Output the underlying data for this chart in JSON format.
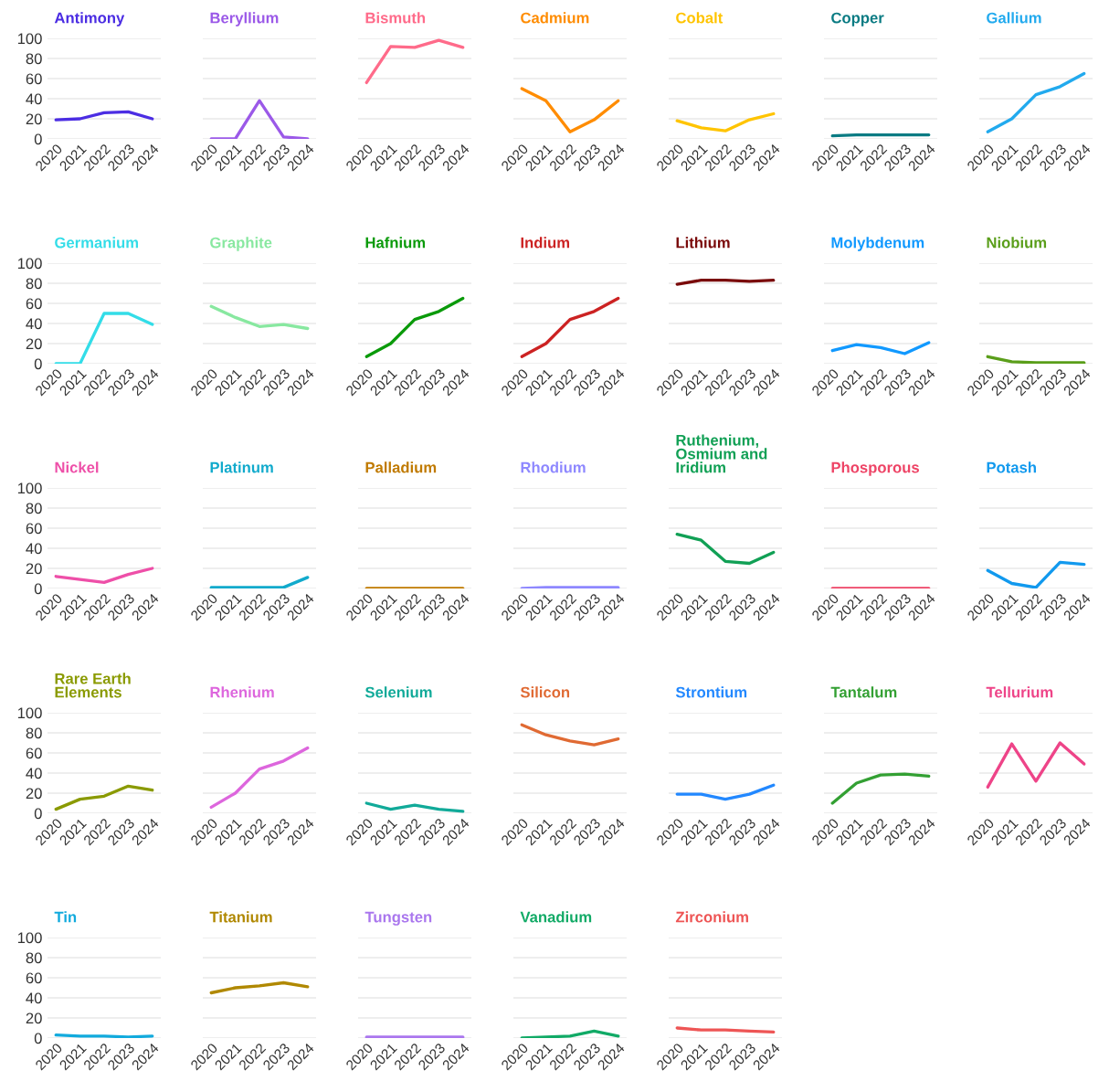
{
  "chart_data": [
    {
      "type": "line",
      "title": "Antimony",
      "categories": [
        "2020",
        "2021",
        "2022",
        "2023",
        "2024"
      ],
      "series": [
        {
          "color": "#4b2de3",
          "values": [
            19,
            20,
            26,
            27,
            20
          ]
        }
      ],
      "ylim": [
        0,
        100
      ],
      "yticks": [
        0,
        20,
        40,
        60,
        80,
        100
      ],
      "grid": "y"
    },
    {
      "type": "line",
      "title": "Beryllium",
      "categories": [
        "2020",
        "2021",
        "2022",
        "2023",
        "2024"
      ],
      "series": [
        {
          "color": "#9b59e8",
          "values": [
            0,
            0,
            38,
            2,
            0
          ]
        }
      ],
      "ylim": [
        0,
        100
      ],
      "yticks": [
        0,
        20,
        40,
        60,
        80,
        100
      ],
      "grid": "y",
      "tick_labels": "x"
    },
    {
      "type": "line",
      "title": "Bismuth",
      "categories": [
        "2020",
        "2021",
        "2022",
        "2023",
        "2024"
      ],
      "series": [
        {
          "color": "#ff6b8a",
          "values": [
            56,
            92,
            91,
            98,
            91
          ]
        }
      ],
      "ylim": [
        0,
        100
      ],
      "yticks": [
        0,
        20,
        40,
        60,
        80,
        100
      ],
      "grid": "y",
      "tick_labels": "x"
    },
    {
      "type": "line",
      "title": "Cadmium",
      "categories": [
        "2020",
        "2021",
        "2022",
        "2023",
        "2024"
      ],
      "series": [
        {
          "color": "#ff8c00",
          "values": [
            50,
            38,
            7,
            19,
            38
          ]
        }
      ],
      "ylim": [
        0,
        100
      ],
      "yticks": [
        0,
        20,
        40,
        60,
        80,
        100
      ],
      "grid": "y",
      "tick_labels": "x"
    },
    {
      "type": "line",
      "title": "Cobalt",
      "categories": [
        "2020",
        "2021",
        "2022",
        "2023",
        "2024"
      ],
      "series": [
        {
          "color": "#ffc400",
          "values": [
            18,
            11,
            8,
            19,
            25
          ]
        }
      ],
      "ylim": [
        0,
        100
      ],
      "yticks": [
        0,
        20,
        40,
        60,
        80,
        100
      ],
      "grid": "y",
      "tick_labels": "x"
    },
    {
      "type": "line",
      "title": "Copper",
      "categories": [
        "2020",
        "2021",
        "2022",
        "2023",
        "2024"
      ],
      "series": [
        {
          "color": "#0a7b83",
          "values": [
            3,
            4,
            4,
            4,
            4
          ]
        }
      ],
      "ylim": [
        0,
        100
      ],
      "yticks": [
        0,
        20,
        40,
        60,
        80,
        100
      ],
      "grid": "y",
      "tick_labels": "x"
    },
    {
      "type": "line",
      "title": "Gallium",
      "categories": [
        "2020",
        "2021",
        "2022",
        "2023",
        "2024"
      ],
      "series": [
        {
          "color": "#22aaee",
          "values": [
            7,
            20,
            44,
            52,
            65
          ]
        }
      ],
      "ylim": [
        0,
        100
      ],
      "yticks": [
        0,
        20,
        40,
        60,
        80,
        100
      ],
      "grid": "y",
      "tick_labels": "x"
    },
    {
      "type": "line",
      "title": "Germanium",
      "categories": [
        "2020",
        "2021",
        "2022",
        "2023",
        "2024"
      ],
      "series": [
        {
          "color": "#33dde8",
          "values": [
            0,
            0,
            50,
            50,
            39
          ]
        }
      ],
      "ylim": [
        0,
        100
      ],
      "yticks": [
        0,
        20,
        40,
        60,
        80,
        100
      ],
      "grid": "y"
    },
    {
      "type": "line",
      "title": "Graphite",
      "categories": [
        "2020",
        "2021",
        "2022",
        "2023",
        "2024"
      ],
      "series": [
        {
          "color": "#88e8a0",
          "values": [
            57,
            46,
            37,
            39,
            35
          ]
        }
      ],
      "ylim": [
        0,
        100
      ],
      "yticks": [
        0,
        20,
        40,
        60,
        80,
        100
      ],
      "grid": "y",
      "tick_labels": "x"
    },
    {
      "type": "line",
      "title": "Hafnium",
      "categories": [
        "2020",
        "2021",
        "2022",
        "2023",
        "2024"
      ],
      "series": [
        {
          "color": "#0a9a0a",
          "values": [
            7,
            20,
            44,
            52,
            65
          ]
        }
      ],
      "ylim": [
        0,
        100
      ],
      "yticks": [
        0,
        20,
        40,
        60,
        80,
        100
      ],
      "grid": "y",
      "tick_labels": "x"
    },
    {
      "type": "line",
      "title": "Indium",
      "categories": [
        "2020",
        "2021",
        "2022",
        "2023",
        "2024"
      ],
      "series": [
        {
          "color": "#cc2222",
          "values": [
            7,
            20,
            44,
            52,
            65
          ]
        }
      ],
      "ylim": [
        0,
        100
      ],
      "yticks": [
        0,
        20,
        40,
        60,
        80,
        100
      ],
      "grid": "y",
      "tick_labels": "x"
    },
    {
      "type": "line",
      "title": "Lithium",
      "categories": [
        "2020",
        "2021",
        "2022",
        "2023",
        "2024"
      ],
      "series": [
        {
          "color": "#7a0a0a",
          "values": [
            79,
            83,
            83,
            82,
            83
          ]
        }
      ],
      "ylim": [
        0,
        100
      ],
      "yticks": [
        0,
        20,
        40,
        60,
        80,
        100
      ],
      "grid": "y",
      "tick_labels": "x"
    },
    {
      "type": "line",
      "title": "Molybdenum",
      "categories": [
        "2020",
        "2021",
        "2022",
        "2023",
        "2024"
      ],
      "series": [
        {
          "color": "#1199ff",
          "values": [
            13,
            19,
            16,
            10,
            21
          ]
        }
      ],
      "ylim": [
        0,
        100
      ],
      "yticks": [
        0,
        20,
        40,
        60,
        80,
        100
      ],
      "grid": "y",
      "tick_labels": "x"
    },
    {
      "type": "line",
      "title": "Niobium",
      "categories": [
        "2020",
        "2021",
        "2022",
        "2023",
        "2024"
      ],
      "series": [
        {
          "color": "#5a9e1a",
          "values": [
            7,
            2,
            1,
            1,
            1
          ]
        }
      ],
      "ylim": [
        0,
        100
      ],
      "yticks": [
        0,
        20,
        40,
        60,
        80,
        100
      ],
      "grid": "y",
      "tick_labels": "x"
    },
    {
      "type": "line",
      "title": "Nickel",
      "categories": [
        "2020",
        "2021",
        "2022",
        "2023",
        "2024"
      ],
      "series": [
        {
          "color": "#ee4fa8",
          "values": [
            12,
            9,
            6,
            14,
            20
          ]
        }
      ],
      "ylim": [
        0,
        100
      ],
      "yticks": [
        0,
        20,
        40,
        60,
        80,
        100
      ],
      "grid": "y"
    },
    {
      "type": "line",
      "title": "Platinum",
      "categories": [
        "2020",
        "2021",
        "2022",
        "2023",
        "2024"
      ],
      "series": [
        {
          "color": "#11aacc",
          "values": [
            1,
            1,
            1,
            1,
            11
          ]
        }
      ],
      "ylim": [
        0,
        100
      ],
      "yticks": [
        0,
        20,
        40,
        60,
        80,
        100
      ],
      "grid": "y",
      "tick_labels": "x"
    },
    {
      "type": "line",
      "title": "Palladium",
      "categories": [
        "2020",
        "2021",
        "2022",
        "2023",
        "2024"
      ],
      "series": [
        {
          "color": "#c07a00",
          "values": [
            0,
            0,
            0,
            0,
            0
          ]
        }
      ],
      "ylim": [
        0,
        100
      ],
      "yticks": [
        0,
        20,
        40,
        60,
        80,
        100
      ],
      "grid": "y",
      "tick_labels": "x"
    },
    {
      "type": "line",
      "title": "Rhodium",
      "categories": [
        "2020",
        "2021",
        "2022",
        "2023",
        "2024"
      ],
      "series": [
        {
          "color": "#8e88ff",
          "values": [
            0,
            1,
            1,
            1,
            1
          ]
        }
      ],
      "ylim": [
        0,
        100
      ],
      "yticks": [
        0,
        20,
        40,
        60,
        80,
        100
      ],
      "grid": "y",
      "tick_labels": "x"
    },
    {
      "type": "line",
      "title": "Ruthenium,\nOsmium and\nIridium",
      "categories": [
        "2020",
        "2021",
        "2022",
        "2023",
        "2024"
      ],
      "series": [
        {
          "color": "#11a055",
          "values": [
            54,
            48,
            27,
            25,
            36
          ]
        }
      ],
      "ylim": [
        0,
        100
      ],
      "yticks": [
        0,
        20,
        40,
        60,
        80,
        100
      ],
      "grid": "y",
      "tick_labels": "x"
    },
    {
      "type": "line",
      "title": "Phosporous",
      "categories": [
        "2020",
        "2021",
        "2022",
        "2023",
        "2024"
      ],
      "series": [
        {
          "color": "#ee4466",
          "values": [
            0,
            0,
            0,
            0,
            0
          ]
        }
      ],
      "ylim": [
        0,
        100
      ],
      "yticks": [
        0,
        20,
        40,
        60,
        80,
        100
      ],
      "grid": "y",
      "tick_labels": "x"
    },
    {
      "type": "line",
      "title": "Potash",
      "categories": [
        "2020",
        "2021",
        "2022",
        "2023",
        "2024"
      ],
      "series": [
        {
          "color": "#1199ee",
          "values": [
            18,
            5,
            1,
            26,
            24
          ]
        }
      ],
      "ylim": [
        0,
        100
      ],
      "yticks": [
        0,
        20,
        40,
        60,
        80,
        100
      ],
      "grid": "y",
      "tick_labels": "x"
    },
    {
      "type": "line",
      "title": "Rare Earth\nElements",
      "categories": [
        "2020",
        "2021",
        "2022",
        "2023",
        "2024"
      ],
      "series": [
        {
          "color": "#8a9a00",
          "values": [
            4,
            14,
            17,
            27,
            23
          ]
        }
      ],
      "ylim": [
        0,
        100
      ],
      "yticks": [
        0,
        20,
        40,
        60,
        80,
        100
      ],
      "grid": "y"
    },
    {
      "type": "line",
      "title": "Rhenium",
      "categories": [
        "2020",
        "2021",
        "2022",
        "2023",
        "2024"
      ],
      "series": [
        {
          "color": "#dd66dd",
          "values": [
            6,
            20,
            44,
            52,
            65
          ]
        }
      ],
      "ylim": [
        0,
        100
      ],
      "yticks": [
        0,
        20,
        40,
        60,
        80,
        100
      ],
      "grid": "y",
      "tick_labels": "x"
    },
    {
      "type": "line",
      "title": "Selenium",
      "categories": [
        "2020",
        "2021",
        "2022",
        "2023",
        "2024"
      ],
      "series": [
        {
          "color": "#11aa99",
          "values": [
            10,
            4,
            8,
            4,
            2
          ]
        }
      ],
      "ylim": [
        0,
        100
      ],
      "yticks": [
        0,
        20,
        40,
        60,
        80,
        100
      ],
      "grid": "y",
      "tick_labels": "x"
    },
    {
      "type": "line",
      "title": "Silicon",
      "categories": [
        "2020",
        "2021",
        "2022",
        "2023",
        "2024"
      ],
      "series": [
        {
          "color": "#e06a33",
          "values": [
            88,
            78,
            72,
            68,
            74
          ]
        }
      ],
      "ylim": [
        0,
        100
      ],
      "yticks": [
        0,
        20,
        40,
        60,
        80,
        100
      ],
      "grid": "y",
      "tick_labels": "x"
    },
    {
      "type": "line",
      "title": "Strontium",
      "categories": [
        "2020",
        "2021",
        "2022",
        "2023",
        "2024"
      ],
      "series": [
        {
          "color": "#2288ff",
          "values": [
            19,
            19,
            14,
            19,
            28
          ]
        }
      ],
      "ylim": [
        0,
        100
      ],
      "yticks": [
        0,
        20,
        40,
        60,
        80,
        100
      ],
      "grid": "y",
      "tick_labels": "x"
    },
    {
      "type": "line",
      "title": "Tantalum",
      "categories": [
        "2020",
        "2021",
        "2022",
        "2023",
        "2024"
      ],
      "series": [
        {
          "color": "#33a033",
          "values": [
            10,
            30,
            38,
            39,
            37
          ]
        }
      ],
      "ylim": [
        0,
        100
      ],
      "yticks": [
        0,
        20,
        40,
        60,
        80,
        100
      ],
      "grid": "y",
      "tick_labels": "x"
    },
    {
      "type": "line",
      "title": "Tellurium",
      "categories": [
        "2020",
        "2021",
        "2022",
        "2023",
        "2024"
      ],
      "series": [
        {
          "color": "#ee4488",
          "values": [
            26,
            69,
            32,
            70,
            49
          ]
        }
      ],
      "ylim": [
        0,
        100
      ],
      "yticks": [
        0,
        20,
        40,
        60,
        80,
        100
      ],
      "grid": "y",
      "tick_labels": "x"
    },
    {
      "type": "line",
      "title": "Tin",
      "categories": [
        "2020",
        "2021",
        "2022",
        "2023",
        "2024"
      ],
      "series": [
        {
          "color": "#11aadd",
          "values": [
            3,
            2,
            2,
            1,
            2
          ]
        }
      ],
      "ylim": [
        0,
        100
      ],
      "yticks": [
        0,
        20,
        40,
        60,
        80,
        100
      ],
      "grid": "y"
    },
    {
      "type": "line",
      "title": "Titanium",
      "categories": [
        "2020",
        "2021",
        "2022",
        "2023",
        "2024"
      ],
      "series": [
        {
          "color": "#b08800",
          "values": [
            45,
            50,
            52,
            55,
            51
          ]
        }
      ],
      "ylim": [
        0,
        100
      ],
      "yticks": [
        0,
        20,
        40,
        60,
        80,
        100
      ],
      "grid": "y",
      "tick_labels": "x"
    },
    {
      "type": "line",
      "title": "Tungsten",
      "categories": [
        "2020",
        "2021",
        "2022",
        "2023",
        "2024"
      ],
      "series": [
        {
          "color": "#aa77ee",
          "values": [
            1,
            1,
            1,
            1,
            1
          ]
        }
      ],
      "ylim": [
        0,
        100
      ],
      "yticks": [
        0,
        20,
        40,
        60,
        80,
        100
      ],
      "grid": "y",
      "tick_labels": "x"
    },
    {
      "type": "line",
      "title": "Vanadium",
      "categories": [
        "2020",
        "2021",
        "2022",
        "2023",
        "2024"
      ],
      "series": [
        {
          "color": "#11aa66",
          "values": [
            0,
            1,
            2,
            7,
            2
          ]
        }
      ],
      "ylim": [
        0,
        100
      ],
      "yticks": [
        0,
        20,
        40,
        60,
        80,
        100
      ],
      "grid": "y",
      "tick_labels": "x"
    },
    {
      "type": "line",
      "title": "Zirconium",
      "categories": [
        "2020",
        "2021",
        "2022",
        "2023",
        "2024"
      ],
      "series": [
        {
          "color": "#ee5555",
          "values": [
            10,
            8,
            8,
            7,
            6
          ]
        }
      ],
      "ylim": [
        0,
        100
      ],
      "yticks": [
        0,
        20,
        40,
        60,
        80,
        100
      ],
      "grid": "y",
      "tick_labels": "x"
    }
  ]
}
